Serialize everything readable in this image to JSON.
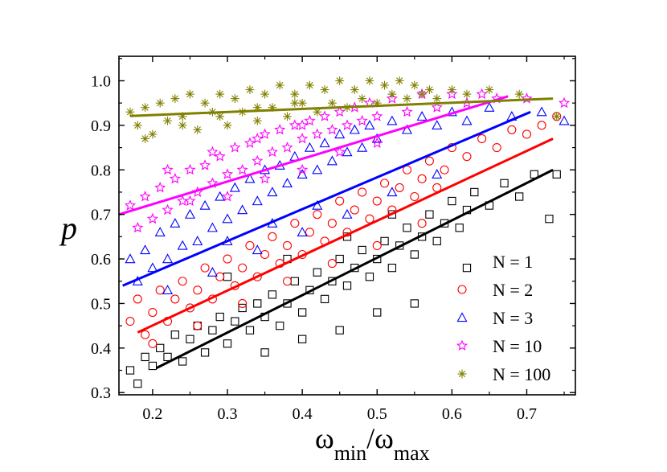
{
  "chart_data": {
    "type": "scatter",
    "title": "",
    "ylabel": "p",
    "xlabel": {
      "prefix": "ω",
      "sub1": "min",
      "slash": "/ω",
      "sub2": "max"
    },
    "xlim": [
      0.155,
      0.765
    ],
    "ylim": [
      0.295,
      1.055
    ],
    "xticks": [
      "0.2",
      "0.3",
      "0.4",
      "0.5",
      "0.6",
      "0.7"
    ],
    "yticks": [
      "0.3",
      "0.4",
      "0.5",
      "0.6",
      "0.7",
      "0.8",
      "0.9",
      "1.0"
    ],
    "grid": false,
    "legend_position": "bottom-right",
    "series": [
      {
        "name": "N = 1",
        "marker": "square",
        "color": "#000000",
        "fit": [
          [
            0.205,
            0.355
          ],
          [
            0.735,
            0.8
          ]
        ],
        "points": [
          [
            0.17,
            0.35
          ],
          [
            0.18,
            0.32
          ],
          [
            0.19,
            0.38
          ],
          [
            0.2,
            0.36
          ],
          [
            0.21,
            0.4
          ],
          [
            0.22,
            0.38
          ],
          [
            0.23,
            0.43
          ],
          [
            0.24,
            0.37
          ],
          [
            0.25,
            0.42
          ],
          [
            0.26,
            0.45
          ],
          [
            0.27,
            0.39
          ],
          [
            0.28,
            0.44
          ],
          [
            0.29,
            0.47
          ],
          [
            0.3,
            0.41
          ],
          [
            0.31,
            0.46
          ],
          [
            0.32,
            0.49
          ],
          [
            0.33,
            0.44
          ],
          [
            0.34,
            0.5
          ],
          [
            0.35,
            0.47
          ],
          [
            0.36,
            0.52
          ],
          [
            0.37,
            0.45
          ],
          [
            0.38,
            0.5
          ],
          [
            0.39,
            0.55
          ],
          [
            0.4,
            0.48
          ],
          [
            0.41,
            0.53
          ],
          [
            0.42,
            0.57
          ],
          [
            0.43,
            0.51
          ],
          [
            0.44,
            0.55
          ],
          [
            0.45,
            0.6
          ],
          [
            0.46,
            0.54
          ],
          [
            0.47,
            0.58
          ],
          [
            0.48,
            0.62
          ],
          [
            0.49,
            0.56
          ],
          [
            0.5,
            0.6
          ],
          [
            0.51,
            0.64
          ],
          [
            0.52,
            0.58
          ],
          [
            0.53,
            0.63
          ],
          [
            0.54,
            0.67
          ],
          [
            0.55,
            0.61
          ],
          [
            0.56,
            0.65
          ],
          [
            0.57,
            0.7
          ],
          [
            0.58,
            0.64
          ],
          [
            0.59,
            0.68
          ],
          [
            0.6,
            0.73
          ],
          [
            0.61,
            0.67
          ],
          [
            0.62,
            0.71
          ],
          [
            0.63,
            0.75
          ],
          [
            0.65,
            0.72
          ],
          [
            0.67,
            0.77
          ],
          [
            0.69,
            0.74
          ],
          [
            0.71,
            0.79
          ],
          [
            0.73,
            0.69
          ],
          [
            0.74,
            0.79
          ],
          [
            0.35,
            0.39
          ],
          [
            0.4,
            0.42
          ],
          [
            0.45,
            0.44
          ],
          [
            0.5,
            0.48
          ],
          [
            0.55,
            0.5
          ],
          [
            0.62,
            0.58
          ],
          [
            0.3,
            0.56
          ],
          [
            0.38,
            0.6
          ],
          [
            0.46,
            0.65
          ],
          [
            0.52,
            0.7
          ]
        ]
      },
      {
        "name": "N = 2",
        "marker": "circle",
        "color": "#ff0000",
        "fit": [
          [
            0.18,
            0.435
          ],
          [
            0.735,
            0.87
          ]
        ],
        "points": [
          [
            0.17,
            0.46
          ],
          [
            0.18,
            0.51
          ],
          [
            0.19,
            0.43
          ],
          [
            0.2,
            0.48
          ],
          [
            0.21,
            0.53
          ],
          [
            0.22,
            0.46
          ],
          [
            0.23,
            0.51
          ],
          [
            0.24,
            0.55
          ],
          [
            0.25,
            0.49
          ],
          [
            0.26,
            0.53
          ],
          [
            0.27,
            0.58
          ],
          [
            0.28,
            0.51
          ],
          [
            0.29,
            0.56
          ],
          [
            0.3,
            0.6
          ],
          [
            0.31,
            0.54
          ],
          [
            0.32,
            0.58
          ],
          [
            0.33,
            0.63
          ],
          [
            0.34,
            0.56
          ],
          [
            0.35,
            0.61
          ],
          [
            0.36,
            0.65
          ],
          [
            0.37,
            0.59
          ],
          [
            0.38,
            0.63
          ],
          [
            0.39,
            0.68
          ],
          [
            0.4,
            0.61
          ],
          [
            0.41,
            0.66
          ],
          [
            0.42,
            0.7
          ],
          [
            0.43,
            0.64
          ],
          [
            0.44,
            0.68
          ],
          [
            0.45,
            0.73
          ],
          [
            0.46,
            0.66
          ],
          [
            0.47,
            0.71
          ],
          [
            0.48,
            0.75
          ],
          [
            0.49,
            0.69
          ],
          [
            0.5,
            0.73
          ],
          [
            0.51,
            0.77
          ],
          [
            0.52,
            0.71
          ],
          [
            0.53,
            0.76
          ],
          [
            0.54,
            0.8
          ],
          [
            0.55,
            0.74
          ],
          [
            0.56,
            0.78
          ],
          [
            0.57,
            0.82
          ],
          [
            0.58,
            0.76
          ],
          [
            0.59,
            0.8
          ],
          [
            0.6,
            0.85
          ],
          [
            0.62,
            0.83
          ],
          [
            0.64,
            0.87
          ],
          [
            0.66,
            0.85
          ],
          [
            0.68,
            0.89
          ],
          [
            0.7,
            0.88
          ],
          [
            0.72,
            0.9
          ],
          [
            0.74,
            0.92
          ],
          [
            0.2,
            0.41
          ],
          [
            0.26,
            0.45
          ],
          [
            0.32,
            0.5
          ],
          [
            0.38,
            0.55
          ],
          [
            0.44,
            0.59
          ],
          [
            0.5,
            0.63
          ],
          [
            0.56,
            0.68
          ]
        ]
      },
      {
        "name": "N = 3",
        "marker": "triangle",
        "color": "#0000ff",
        "fit": [
          [
            0.16,
            0.54
          ],
          [
            0.705,
            0.93
          ]
        ],
        "points": [
          [
            0.17,
            0.6
          ],
          [
            0.18,
            0.55
          ],
          [
            0.19,
            0.62
          ],
          [
            0.2,
            0.58
          ],
          [
            0.21,
            0.66
          ],
          [
            0.22,
            0.6
          ],
          [
            0.23,
            0.68
          ],
          [
            0.24,
            0.63
          ],
          [
            0.25,
            0.7
          ],
          [
            0.26,
            0.64
          ],
          [
            0.27,
            0.72
          ],
          [
            0.28,
            0.67
          ],
          [
            0.29,
            0.74
          ],
          [
            0.3,
            0.69
          ],
          [
            0.31,
            0.76
          ],
          [
            0.32,
            0.71
          ],
          [
            0.33,
            0.78
          ],
          [
            0.34,
            0.73
          ],
          [
            0.35,
            0.8
          ],
          [
            0.36,
            0.75
          ],
          [
            0.37,
            0.81
          ],
          [
            0.38,
            0.77
          ],
          [
            0.39,
            0.83
          ],
          [
            0.4,
            0.79
          ],
          [
            0.41,
            0.85
          ],
          [
            0.42,
            0.8
          ],
          [
            0.43,
            0.86
          ],
          [
            0.44,
            0.82
          ],
          [
            0.45,
            0.88
          ],
          [
            0.46,
            0.84
          ],
          [
            0.47,
            0.89
          ],
          [
            0.48,
            0.85
          ],
          [
            0.49,
            0.9
          ],
          [
            0.5,
            0.87
          ],
          [
            0.52,
            0.91
          ],
          [
            0.54,
            0.89
          ],
          [
            0.56,
            0.92
          ],
          [
            0.58,
            0.9
          ],
          [
            0.6,
            0.93
          ],
          [
            0.62,
            0.91
          ],
          [
            0.65,
            0.94
          ],
          [
            0.68,
            0.92
          ],
          [
            0.72,
            0.93
          ],
          [
            0.75,
            0.91
          ],
          [
            0.22,
            0.53
          ],
          [
            0.28,
            0.57
          ],
          [
            0.34,
            0.62
          ],
          [
            0.4,
            0.66
          ],
          [
            0.46,
            0.7
          ],
          [
            0.52,
            0.75
          ],
          [
            0.58,
            0.79
          ],
          [
            0.3,
            0.64
          ],
          [
            0.36,
            0.68
          ],
          [
            0.42,
            0.72
          ]
        ]
      },
      {
        "name": "N = 10",
        "marker": "star",
        "color": "#ff00ff",
        "fit": [
          [
            0.155,
            0.7
          ],
          [
            0.675,
            0.965
          ]
        ],
        "points": [
          [
            0.17,
            0.72
          ],
          [
            0.18,
            0.67
          ],
          [
            0.19,
            0.74
          ],
          [
            0.2,
            0.69
          ],
          [
            0.21,
            0.76
          ],
          [
            0.22,
            0.71
          ],
          [
            0.23,
            0.78
          ],
          [
            0.24,
            0.73
          ],
          [
            0.25,
            0.8
          ],
          [
            0.26,
            0.75
          ],
          [
            0.27,
            0.81
          ],
          [
            0.28,
            0.77
          ],
          [
            0.29,
            0.83
          ],
          [
            0.3,
            0.79
          ],
          [
            0.31,
            0.85
          ],
          [
            0.32,
            0.8
          ],
          [
            0.33,
            0.86
          ],
          [
            0.34,
            0.82
          ],
          [
            0.35,
            0.88
          ],
          [
            0.36,
            0.84
          ],
          [
            0.37,
            0.89
          ],
          [
            0.38,
            0.85
          ],
          [
            0.39,
            0.9
          ],
          [
            0.4,
            0.87
          ],
          [
            0.41,
            0.91
          ],
          [
            0.42,
            0.88
          ],
          [
            0.43,
            0.92
          ],
          [
            0.44,
            0.89
          ],
          [
            0.45,
            0.93
          ],
          [
            0.46,
            0.9
          ],
          [
            0.47,
            0.94
          ],
          [
            0.48,
            0.91
          ],
          [
            0.49,
            0.95
          ],
          [
            0.5,
            0.92
          ],
          [
            0.52,
            0.96
          ],
          [
            0.54,
            0.93
          ],
          [
            0.56,
            0.97
          ],
          [
            0.58,
            0.94
          ],
          [
            0.6,
            0.97
          ],
          [
            0.62,
            0.95
          ],
          [
            0.64,
            0.97
          ],
          [
            0.66,
            0.96
          ],
          [
            0.7,
            0.96
          ],
          [
            0.75,
            0.95
          ],
          [
            0.25,
            0.73
          ],
          [
            0.3,
            0.74
          ],
          [
            0.35,
            0.78
          ],
          [
            0.4,
            0.8
          ],
          [
            0.45,
            0.84
          ],
          [
            0.5,
            0.86
          ],
          [
            0.22,
            0.8
          ],
          [
            0.28,
            0.84
          ],
          [
            0.34,
            0.87
          ],
          [
            0.4,
            0.9
          ]
        ]
      },
      {
        "name": "N = 100",
        "marker": "asterisk",
        "color": "#808000",
        "fit": [
          [
            0.17,
            0.921
          ],
          [
            0.735,
            0.96
          ]
        ],
        "points": [
          [
            0.17,
            0.93
          ],
          [
            0.18,
            0.9
          ],
          [
            0.19,
            0.94
          ],
          [
            0.2,
            0.88
          ],
          [
            0.21,
            0.95
          ],
          [
            0.22,
            0.91
          ],
          [
            0.23,
            0.96
          ],
          [
            0.24,
            0.92
          ],
          [
            0.25,
            0.97
          ],
          [
            0.26,
            0.89
          ],
          [
            0.27,
            0.95
          ],
          [
            0.28,
            0.93
          ],
          [
            0.29,
            0.97
          ],
          [
            0.3,
            0.9
          ],
          [
            0.31,
            0.96
          ],
          [
            0.32,
            0.93
          ],
          [
            0.33,
            0.98
          ],
          [
            0.34,
            0.91
          ],
          [
            0.35,
            0.97
          ],
          [
            0.36,
            0.94
          ],
          [
            0.37,
            0.99
          ],
          [
            0.38,
            0.92
          ],
          [
            0.39,
            0.97
          ],
          [
            0.4,
            0.95
          ],
          [
            0.41,
            0.99
          ],
          [
            0.42,
            0.93
          ],
          [
            0.43,
            0.98
          ],
          [
            0.44,
            0.95
          ],
          [
            0.45,
            1.0
          ],
          [
            0.46,
            0.94
          ],
          [
            0.47,
            0.98
          ],
          [
            0.48,
            0.96
          ],
          [
            0.49,
            1.0
          ],
          [
            0.5,
            0.95
          ],
          [
            0.51,
            0.99
          ],
          [
            0.52,
            0.97
          ],
          [
            0.53,
            1.0
          ],
          [
            0.54,
            0.96
          ],
          [
            0.55,
            0.99
          ],
          [
            0.56,
            0.97
          ],
          [
            0.57,
            0.98
          ],
          [
            0.58,
            0.96
          ],
          [
            0.6,
            0.98
          ],
          [
            0.62,
            0.97
          ],
          [
            0.65,
            0.98
          ],
          [
            0.69,
            0.97
          ],
          [
            0.74,
            0.92
          ],
          [
            0.19,
            0.87
          ],
          [
            0.24,
            0.9
          ],
          [
            0.29,
            0.92
          ],
          [
            0.34,
            0.94
          ],
          [
            0.39,
            0.95
          ]
        ]
      }
    ]
  }
}
